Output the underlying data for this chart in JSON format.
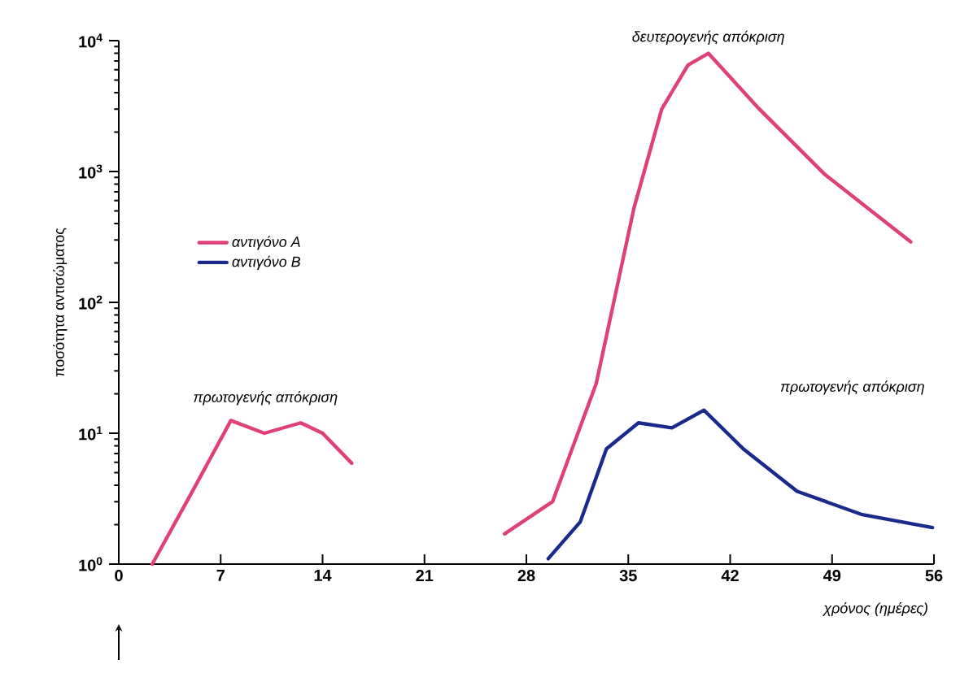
{
  "chart_data": {
    "type": "line",
    "xlabel": "χρόνος (ημέρες)",
    "ylabel": "ποσότητα αντισώματος",
    "log": "y",
    "grid": false,
    "legend": "top left",
    "line_style": "solid",
    "xlim": [
      0,
      56
    ],
    "xticks": [
      0,
      7,
      14,
      21,
      28,
      35,
      42,
      49,
      56
    ],
    "ylim": [
      1,
      10000
    ],
    "yticks": [
      {
        "value": 1,
        "label": "10$^{0}$"
      },
      {
        "value": 10,
        "label": "10$^{1}$"
      },
      {
        "value": 100,
        "label": "10$^{2}$"
      },
      {
        "value": 1000,
        "label": "10$^{3}$"
      },
      {
        "value": 10000,
        "label": "10$^{4}$"
      }
    ],
    "series": [
      {
        "name": "αντιγόνο A",
        "color": "#e0407a",
        "x": [
          2.3,
          5,
          7.7,
          10,
          12.5,
          14,
          16,
          21,
          26.5,
          29.8,
          32.8,
          35.4,
          37.3,
          39.1,
          40.5,
          44,
          48.5,
          54.4
        ],
        "values": [
          1,
          3.5,
          12.5,
          10,
          12,
          10,
          5.9,
          null,
          1.7,
          3,
          24,
          530,
          3000,
          6500,
          8000,
          3000,
          950,
          290
        ]
      },
      {
        "name": "αντιγόνο B",
        "color": "#1a2a8c",
        "x": [
          29.5,
          31.7,
          33.5,
          35.7,
          38,
          40.2,
          42.9,
          46.6,
          51,
          55.9
        ],
        "values": [
          1.1,
          2.1,
          7.6,
          12,
          11,
          15,
          7.6,
          3.6,
          2.4,
          1.9
        ]
      }
    ],
    "annotations": [
      "πρωτογενής απόκριση",
      {
        "text": "δευτερογενής απόκριση",
        "x": 40.5,
        "y": 9000
      },
      "πρωτογενής απόκριση"
    ]
  }
}
